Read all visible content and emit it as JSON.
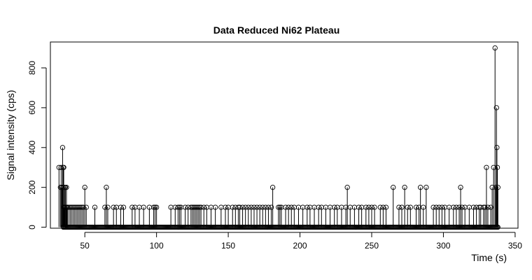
{
  "chart_data": {
    "type": "line",
    "title": "Data Reduced Ni62 Plateau",
    "xlabel": "Time (s)",
    "ylabel": "Signal intensity (cps)",
    "xlim": [
      26,
      352
    ],
    "ylim": [
      -5,
      930
    ],
    "x_ticks": [
      50,
      100,
      150,
      200,
      250,
      300,
      350
    ],
    "y_ticks": [
      0,
      200,
      400,
      600,
      800
    ],
    "x_tick_labels": [
      "50",
      "100",
      "150",
      "200",
      "250",
      "300",
      "350"
    ],
    "y_tick_labels": [
      "0",
      "200",
      "400",
      "600",
      "800"
    ],
    "grid": false,
    "legend": "none",
    "marker": "open-circle",
    "line_style": "histogram-spikes",
    "baseline": {
      "from": 35,
      "to": 338,
      "step": 0.5,
      "value": 0
    },
    "series": [
      {
        "x": [
          32,
          33,
          33.5,
          34,
          34.5,
          34.8,
          35,
          35.3,
          35.6,
          36,
          36.4,
          36.8,
          37.2,
          37.6,
          38,
          39,
          40,
          41,
          42,
          43,
          44,
          45,
          46,
          47,
          48,
          49,
          50,
          51,
          57,
          64,
          65,
          66,
          70,
          72,
          75,
          77,
          83,
          85,
          88,
          91,
          95,
          98,
          99,
          100,
          110,
          113,
          115,
          116,
          117,
          120,
          122,
          124,
          125,
          126,
          127,
          128,
          129,
          130,
          131,
          133,
          135,
          138,
          141,
          145,
          148,
          150,
          153,
          155,
          157,
          158,
          160,
          162,
          164,
          166,
          168,
          170,
          172,
          174,
          176,
          178,
          180,
          181,
          185,
          186,
          187,
          190,
          192,
          194,
          196,
          199,
          202,
          205,
          207,
          210,
          213,
          215,
          218,
          221,
          224,
          226,
          229,
          232,
          233,
          235,
          238,
          241,
          243,
          246,
          248,
          250,
          252,
          256,
          258,
          260,
          265,
          269,
          271,
          273,
          275,
          277,
          281,
          283,
          284,
          286,
          288,
          293,
          295,
          297,
          299,
          301,
          304,
          307,
          309,
          311,
          312,
          313,
          315,
          318,
          321,
          323,
          325,
          326,
          328,
          329,
          330,
          331,
          333,
          334,
          335,
          336,
          336.5,
          337,
          337.3,
          337.6,
          338
        ],
        "y": [
          300,
          200,
          300,
          200,
          400,
          300,
          200,
          300,
          100,
          200,
          200,
          100,
          200,
          100,
          100,
          100,
          100,
          100,
          100,
          100,
          100,
          100,
          100,
          100,
          100,
          100,
          200,
          100,
          100,
          100,
          200,
          100,
          100,
          100,
          100,
          100,
          100,
          100,
          100,
          100,
          100,
          100,
          100,
          100,
          100,
          100,
          100,
          100,
          100,
          100,
          100,
          100,
          100,
          100,
          100,
          100,
          100,
          100,
          100,
          100,
          100,
          100,
          100,
          100,
          100,
          100,
          100,
          100,
          100,
          100,
          100,
          100,
          100,
          100,
          100,
          100,
          100,
          100,
          100,
          100,
          100,
          200,
          100,
          100,
          100,
          100,
          100,
          100,
          100,
          100,
          100,
          100,
          100,
          100,
          100,
          100,
          100,
          100,
          100,
          100,
          100,
          100,
          200,
          100,
          100,
          100,
          100,
          100,
          100,
          100,
          100,
          100,
          100,
          100,
          200,
          100,
          100,
          200,
          100,
          100,
          100,
          100,
          200,
          100,
          200,
          100,
          100,
          100,
          100,
          100,
          100,
          100,
          100,
          100,
          200,
          100,
          100,
          100,
          100,
          100,
          100,
          100,
          100,
          100,
          300,
          100,
          100,
          200,
          300,
          900,
          200,
          600,
          400,
          300,
          200
        ]
      }
    ]
  }
}
